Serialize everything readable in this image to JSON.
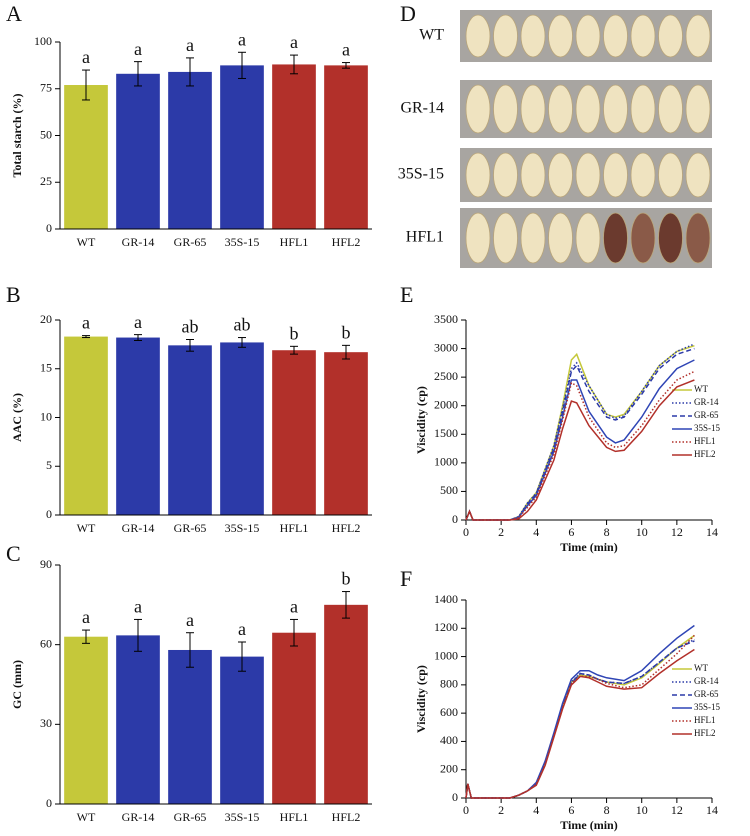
{
  "chart_data": [
    {
      "type": "bar",
      "panel": "A",
      "y_label": "Total starch (%)",
      "categories": [
        "WT",
        "GR-14",
        "GR-65",
        "35S-15",
        "HFL1",
        "HFL2"
      ],
      "values": [
        77,
        83,
        84,
        87.5,
        88,
        87.5
      ],
      "errors": [
        8,
        6.5,
        7.5,
        7,
        5,
        1.5
      ],
      "letters": [
        "a",
        "a",
        "a",
        "a",
        "a",
        "a"
      ],
      "colors": [
        "#c5c83a",
        "#2c3aa8",
        "#2c3aa8",
        "#2c3aa8",
        "#b2302a",
        "#b2302a"
      ],
      "ylim": [
        0,
        100
      ],
      "yticks": [
        0,
        25,
        50,
        75,
        100
      ]
    },
    {
      "type": "bar",
      "panel": "B",
      "y_label": "AAC (%)",
      "categories": [
        "WT",
        "GR-14",
        "GR-65",
        "35S-15",
        "HFL1",
        "HFL2"
      ],
      "values": [
        18.3,
        18.2,
        17.4,
        17.7,
        16.9,
        16.7
      ],
      "errors": [
        0.1,
        0.3,
        0.6,
        0.5,
        0.4,
        0.7
      ],
      "letters": [
        "a",
        "a",
        "ab",
        "ab",
        "b",
        "b"
      ],
      "colors": [
        "#c5c83a",
        "#2c3aa8",
        "#2c3aa8",
        "#2c3aa8",
        "#b2302a",
        "#b2302a"
      ],
      "ylim": [
        0,
        20
      ],
      "yticks": [
        0,
        5,
        10,
        15,
        20
      ]
    },
    {
      "type": "bar",
      "panel": "C",
      "y_label": "GC (mm)",
      "categories": [
        "WT",
        "GR-14",
        "GR-65",
        "35S-15",
        "HFL1",
        "HFL2"
      ],
      "values": [
        63,
        63.5,
        58,
        55.5,
        64.5,
        75
      ],
      "errors": [
        2.5,
        6,
        6.5,
        5.5,
        5,
        5
      ],
      "letters": [
        "a",
        "a",
        "a",
        "a",
        "a",
        "b"
      ],
      "colors": [
        "#c5c83a",
        "#2c3aa8",
        "#2c3aa8",
        "#2c3aa8",
        "#b2302a",
        "#b2302a"
      ],
      "ylim": [
        0,
        90
      ],
      "yticks": [
        0,
        30,
        60,
        90
      ]
    },
    {
      "type": "image",
      "panel": "D",
      "rows": [
        "WT",
        "GR-14",
        "35S-15",
        "HFL1"
      ]
    },
    {
      "type": "line",
      "panel": "E",
      "x_label": "Time (min)",
      "y_label": "Viscidity (cp)",
      "x": [
        0,
        0.2,
        0.4,
        2.5,
        3,
        3.5,
        4,
        5,
        5.5,
        6,
        6.3,
        7,
        8,
        8.5,
        9,
        10,
        11,
        12,
        13
      ],
      "series": [
        {
          "name": "WT",
          "color": "#c5c83a",
          "dash": "solid",
          "values": [
            0,
            150,
            0,
            0,
            60,
            300,
            480,
            1300,
            2000,
            2800,
            2900,
            2350,
            1850,
            1800,
            1850,
            2250,
            2700,
            2950,
            3050
          ]
        },
        {
          "name": "GR-14",
          "color": "#2c3aa8",
          "dash": "dotted",
          "values": [
            0,
            150,
            0,
            0,
            60,
            300,
            470,
            1300,
            1950,
            2650,
            2750,
            2350,
            1850,
            1780,
            1820,
            2250,
            2700,
            2950,
            3080
          ]
        },
        {
          "name": "GR-65",
          "color": "#2c3aa8",
          "dash": "dashed",
          "values": [
            0,
            150,
            0,
            0,
            50,
            280,
            460,
            1250,
            1900,
            2600,
            2700,
            2250,
            1800,
            1750,
            1800,
            2200,
            2650,
            2900,
            3000
          ]
        },
        {
          "name": "35S-15",
          "color": "#2f45b5",
          "dash": "solid",
          "values": [
            0,
            150,
            0,
            0,
            50,
            250,
            430,
            1200,
            1800,
            2450,
            2450,
            1900,
            1450,
            1350,
            1400,
            1800,
            2300,
            2650,
            2800
          ]
        },
        {
          "name": "HFL1",
          "color": "#b2302a",
          "dash": "dotted",
          "values": [
            0,
            150,
            0,
            0,
            40,
            220,
            400,
            1150,
            1750,
            2400,
            2350,
            1800,
            1350,
            1270,
            1300,
            1650,
            2100,
            2450,
            2600
          ]
        },
        {
          "name": "HFL2",
          "color": "#b2302a",
          "dash": "solid",
          "values": [
            0,
            150,
            0,
            0,
            20,
            150,
            350,
            1050,
            1600,
            2080,
            2050,
            1650,
            1270,
            1200,
            1220,
            1550,
            2000,
            2330,
            2450
          ]
        }
      ],
      "xlim": [
        0,
        14
      ],
      "xticks": [
        0,
        2,
        4,
        6,
        8,
        10,
        12,
        14
      ],
      "ylim": [
        0,
        3500
      ],
      "yticks": [
        0,
        500,
        1000,
        1500,
        2000,
        2500,
        3000,
        3500
      ],
      "legend": "right"
    },
    {
      "type": "line",
      "panel": "F",
      "x_label": "Time (min)",
      "y_label": "Viscidity (cp)",
      "x": [
        0,
        0.1,
        0.3,
        2.5,
        3,
        3.5,
        4,
        4.5,
        5,
        5.5,
        6,
        6.5,
        7,
        7.5,
        8,
        9,
        10,
        11,
        12,
        13
      ],
      "series": [
        {
          "name": "WT",
          "color": "#c5c83a",
          "dash": "solid",
          "values": [
            0,
            100,
            0,
            0,
            20,
            50,
            100,
            250,
            450,
            650,
            820,
            870,
            860,
            840,
            820,
            800,
            850,
            950,
            1060,
            1150
          ]
        },
        {
          "name": "GR-14",
          "color": "#2c3aa8",
          "dash": "dotted",
          "values": [
            0,
            100,
            0,
            0,
            20,
            50,
            100,
            250,
            450,
            650,
            820,
            880,
            870,
            840,
            820,
            810,
            860,
            960,
            1060,
            1120
          ]
        },
        {
          "name": "GR-65",
          "color": "#2c3aa8",
          "dash": "dashed",
          "values": [
            0,
            100,
            0,
            0,
            20,
            50,
            100,
            240,
            440,
            640,
            810,
            880,
            870,
            840,
            820,
            810,
            860,
            960,
            1060,
            1110
          ]
        },
        {
          "name": "35S-15",
          "color": "#2f45b5",
          "dash": "solid",
          "values": [
            0,
            100,
            0,
            0,
            20,
            50,
            110,
            260,
            460,
            670,
            840,
            900,
            900,
            870,
            850,
            830,
            900,
            1020,
            1130,
            1220
          ]
        },
        {
          "name": "HFL1",
          "color": "#b2302a",
          "dash": "dotted",
          "values": [
            0,
            100,
            0,
            0,
            20,
            50,
            100,
            240,
            440,
            640,
            810,
            860,
            860,
            840,
            810,
            780,
            800,
            910,
            1020,
            1150
          ]
        },
        {
          "name": "HFL2",
          "color": "#b2302a",
          "dash": "solid",
          "values": [
            0,
            100,
            0,
            0,
            20,
            50,
            90,
            230,
            430,
            630,
            800,
            860,
            850,
            820,
            790,
            770,
            780,
            880,
            970,
            1050
          ]
        }
      ],
      "xlim": [
        0,
        14
      ],
      "xticks": [
        0,
        2,
        4,
        6,
        8,
        10,
        12,
        14
      ],
      "ylim": [
        0,
        1400
      ],
      "yticks": [
        0,
        200,
        400,
        600,
        800,
        1000,
        1200,
        1400
      ],
      "legend": "right"
    }
  ]
}
